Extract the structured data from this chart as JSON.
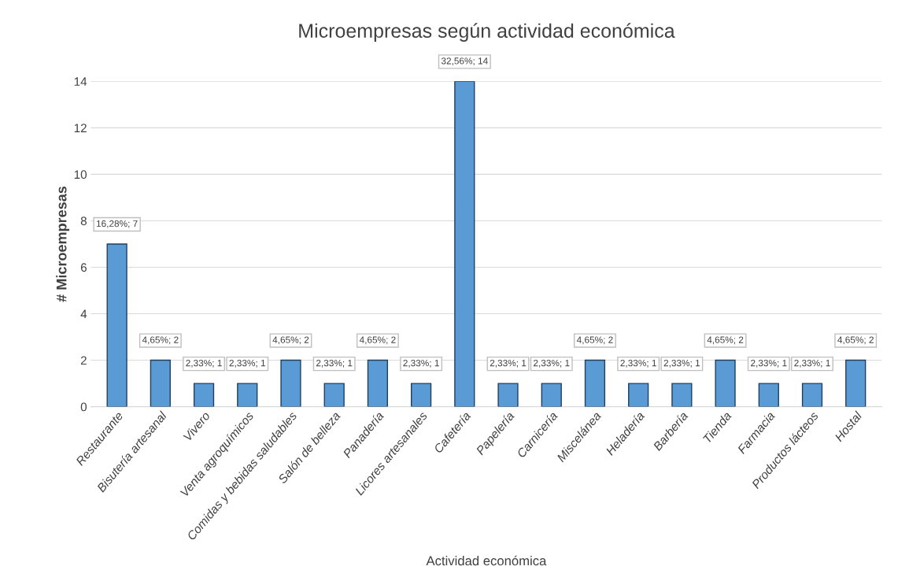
{
  "chart_data": {
    "type": "bar",
    "title": "Microempresas según actividad económica",
    "xlabel": "Actividad económica",
    "ylabel": "# Microempresas",
    "categories": [
      "Restaurante",
      "Bisutería artesanal",
      "Vivero",
      "Venta agroquímicos",
      "Comidas y bebidas saludables",
      "Salón de belleza",
      "Panadería",
      "Licores artesanales",
      "Cafetería",
      "Papelería",
      "Carnicería",
      "Miscelánea",
      "Heladería",
      "Barbería",
      "Tienda",
      "Farmacia",
      "Productos lácteos",
      "Hostal"
    ],
    "values": [
      7,
      2,
      1,
      1,
      2,
      1,
      2,
      1,
      14,
      1,
      1,
      2,
      1,
      1,
      2,
      1,
      1,
      2
    ],
    "value_labels": [
      "16,28%; 7",
      "4,65%; 2",
      "2,33%; 1",
      "2,33%; 1",
      "4,65%; 2",
      "2,33%; 1",
      "4,65%; 2",
      "2,33%; 1",
      "32,56%; 14",
      "2,33%; 1",
      "2,33%; 1",
      "4,65%; 2",
      "2,33%; 1",
      "2,33%; 1",
      "4,65%; 2",
      "2,33%; 1",
      "2,33%; 1",
      "4,65%; 2"
    ],
    "color": "#5b9bd5",
    "ylim": [
      0,
      14
    ],
    "yticks": [
      0,
      2,
      4,
      6,
      8,
      10,
      12,
      14
    ],
    "grid": "y"
  }
}
